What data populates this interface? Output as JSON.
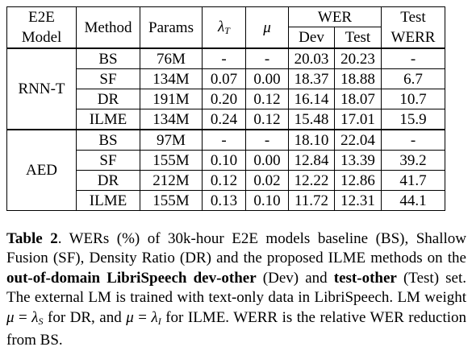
{
  "header": {
    "e2e_model": [
      "E2E",
      "Model"
    ],
    "method": "Method",
    "params": "Params",
    "lambda_t": {
      "base": "λ",
      "sub": "T"
    },
    "mu": "μ",
    "wer": "WER",
    "dev": "Dev",
    "test": "Test",
    "test_werr": [
      "Test",
      "WERR"
    ]
  },
  "groups": [
    {
      "model": "RNN-T",
      "rows": [
        {
          "method": "BS",
          "params": "76M",
          "lambda": "-",
          "mu": "-",
          "dev": "20.03",
          "test": "20.23",
          "werr": "-"
        },
        {
          "method": "SF",
          "params": "134M",
          "lambda": "0.07",
          "mu": "0.00",
          "dev": "18.37",
          "test": "18.88",
          "werr": "6.7"
        },
        {
          "method": "DR",
          "params": "191M",
          "lambda": "0.20",
          "mu": "0.12",
          "dev": "16.14",
          "test": "18.07",
          "werr": "10.7"
        },
        {
          "method": "ILME",
          "params": "134M",
          "lambda": "0.24",
          "mu": "0.12",
          "dev": "15.48",
          "test": "17.01",
          "werr": "15.9"
        }
      ]
    },
    {
      "model": "AED",
      "rows": [
        {
          "method": "BS",
          "params": "97M",
          "lambda": "-",
          "mu": "-",
          "dev": "18.10",
          "test": "22.04",
          "werr": "-"
        },
        {
          "method": "SF",
          "params": "155M",
          "lambda": "0.10",
          "mu": "0.00",
          "dev": "12.84",
          "test": "13.39",
          "werr": "39.2"
        },
        {
          "method": "DR",
          "params": "212M",
          "lambda": "0.12",
          "mu": "0.02",
          "dev": "12.22",
          "test": "12.86",
          "werr": "41.7"
        },
        {
          "method": "ILME",
          "params": "155M",
          "lambda": "0.13",
          "mu": "0.10",
          "dev": "11.72",
          "test": "12.31",
          "werr": "44.1"
        }
      ]
    }
  ],
  "caption": {
    "label": "Table 2",
    "t1": ". WERs (%) of 30k-hour E2E models baseline (BS), Shallow Fusion (SF), Density Ratio (DR) and the proposed ILME methods on the ",
    "b1": "out-of-domain LibriSpeech dev-other",
    "t2": " (Dev) and ",
    "b2": "test-other",
    "t3": " (Test) set.  The external LM is trained with text-only data in LibriSpeech.  LM weight ",
    "mu": "μ",
    "eq": " = ",
    "lambda": "λ",
    "sub_s": "S",
    "t4": " for DR, and ",
    "sub_i": "I",
    "t5": " for ILME. WERR is the relative WER reduction from BS."
  }
}
